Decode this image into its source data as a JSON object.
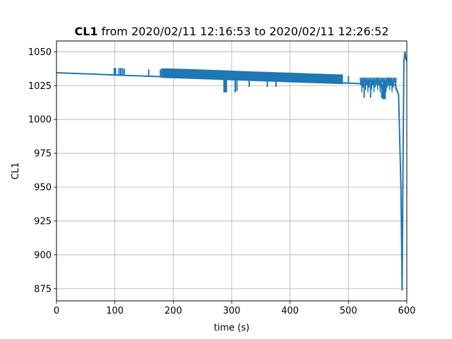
{
  "chart_data": {
    "type": "line",
    "title_bold": "CL1",
    "title_rest": " from 2020/02/11 12:16:53 to 2020/02/11 12:26:52",
    "xlabel": "time (s)",
    "ylabel": "CL1",
    "xlim": [
      0,
      600
    ],
    "ylim": [
      866,
      1058
    ],
    "xticks": [
      0,
      100,
      200,
      300,
      400,
      500,
      600
    ],
    "yticks": [
      875,
      900,
      925,
      950,
      975,
      1000,
      1025,
      1050
    ],
    "grid": true,
    "line_color": "#1f77b4",
    "series": [
      {
        "x": [
          0,
          20,
          40,
          60,
          80,
          100,
          120,
          140,
          160,
          180,
          200,
          220,
          240,
          260,
          280,
          300,
          320,
          340,
          360,
          380,
          400,
          420,
          440,
          460,
          480,
          500,
          520,
          540,
          560,
          580,
          586,
          590,
          592,
          594,
          595,
          596,
          597,
          598,
          599,
          600
        ],
        "y": [
          1034.5,
          1034.2,
          1033.9,
          1033.6,
          1033.2,
          1032.8,
          1032.5,
          1032.2,
          1031.9,
          1031.6,
          1031.3,
          1031.0,
          1030.7,
          1030.4,
          1030.1,
          1029.8,
          1029.5,
          1029.2,
          1028.9,
          1028.6,
          1028.3,
          1028.0,
          1027.7,
          1027.4,
          1027.1,
          1026.8,
          1026.5,
          1026.2,
          1025.9,
          1025.6,
          1018,
          950,
          874,
          990,
          1042,
          1048,
          1050,
          1046,
          1044,
          1045
        ]
      }
    ],
    "band_series": {
      "x": [
        180,
        200,
        220,
        240,
        260,
        280,
        300,
        320,
        340,
        360,
        380,
        400,
        420,
        440,
        460,
        480,
        490
      ],
      "high": [
        1037.5,
        1037.3,
        1037.1,
        1036.8,
        1036.5,
        1036.2,
        1035.8,
        1035.5,
        1035.2,
        1034.9,
        1034.6,
        1034.3,
        1034.0,
        1033.7,
        1033.4,
        1033.1,
        1033.0
      ],
      "low": [
        1031.0,
        1030.7,
        1030.4,
        1030.1,
        1029.8,
        1029.5,
        1029.2,
        1028.9,
        1028.6,
        1028.3,
        1028.0,
        1027.7,
        1027.4,
        1027.1,
        1026.8,
        1026.5,
        1026.4
      ]
    },
    "spikes": [
      {
        "x": 99,
        "from": 1033,
        "to": 1038
      },
      {
        "x": 101,
        "from": 1033,
        "to": 1038
      },
      {
        "x": 107,
        "from": 1033,
        "to": 1038
      },
      {
        "x": 110,
        "from": 1032.5,
        "to": 1038
      },
      {
        "x": 113,
        "from": 1032.5,
        "to": 1038
      },
      {
        "x": 116,
        "from": 1032.5,
        "to": 1037.5
      },
      {
        "x": 158,
        "from": 1032,
        "to": 1037
      },
      {
        "x": 178,
        "from": 1031.5,
        "to": 1037
      },
      {
        "x": 287,
        "from": 1030,
        "to": 1020
      },
      {
        "x": 289,
        "from": 1030,
        "to": 1020
      },
      {
        "x": 291,
        "from": 1030,
        "to": 1020
      },
      {
        "x": 306,
        "from": 1029.5,
        "to": 1020
      },
      {
        "x": 309,
        "from": 1029.5,
        "to": 1021
      },
      {
        "x": 330,
        "from": 1029.5,
        "to": 1024
      },
      {
        "x": 361,
        "from": 1029,
        "to": 1024
      },
      {
        "x": 376,
        "from": 1028.5,
        "to": 1024
      },
      {
        "x": 500,
        "from": 1027,
        "to": 1032
      },
      {
        "x": 525,
        "from": 1026.5,
        "to": 1031
      },
      {
        "x": 527,
        "from": 1026.5,
        "to": 1016
      },
      {
        "x": 538,
        "from": 1026,
        "to": 1016
      },
      {
        "x": 549,
        "from": 1026,
        "to": 1031
      },
      {
        "x": 557,
        "from": 1026,
        "to": 1016
      },
      {
        "x": 559,
        "from": 1026,
        "to": 1015
      },
      {
        "x": 561,
        "from": 1026,
        "to": 1015
      },
      {
        "x": 563,
        "from": 1026,
        "to": 1015
      },
      {
        "x": 567,
        "from": 1026,
        "to": 1031
      },
      {
        "x": 570,
        "from": 1026,
        "to": 1031
      }
    ],
    "noise_regions": [
      {
        "x_from": 520,
        "x_to": 582,
        "low": 1019,
        "high": 1031
      }
    ]
  }
}
